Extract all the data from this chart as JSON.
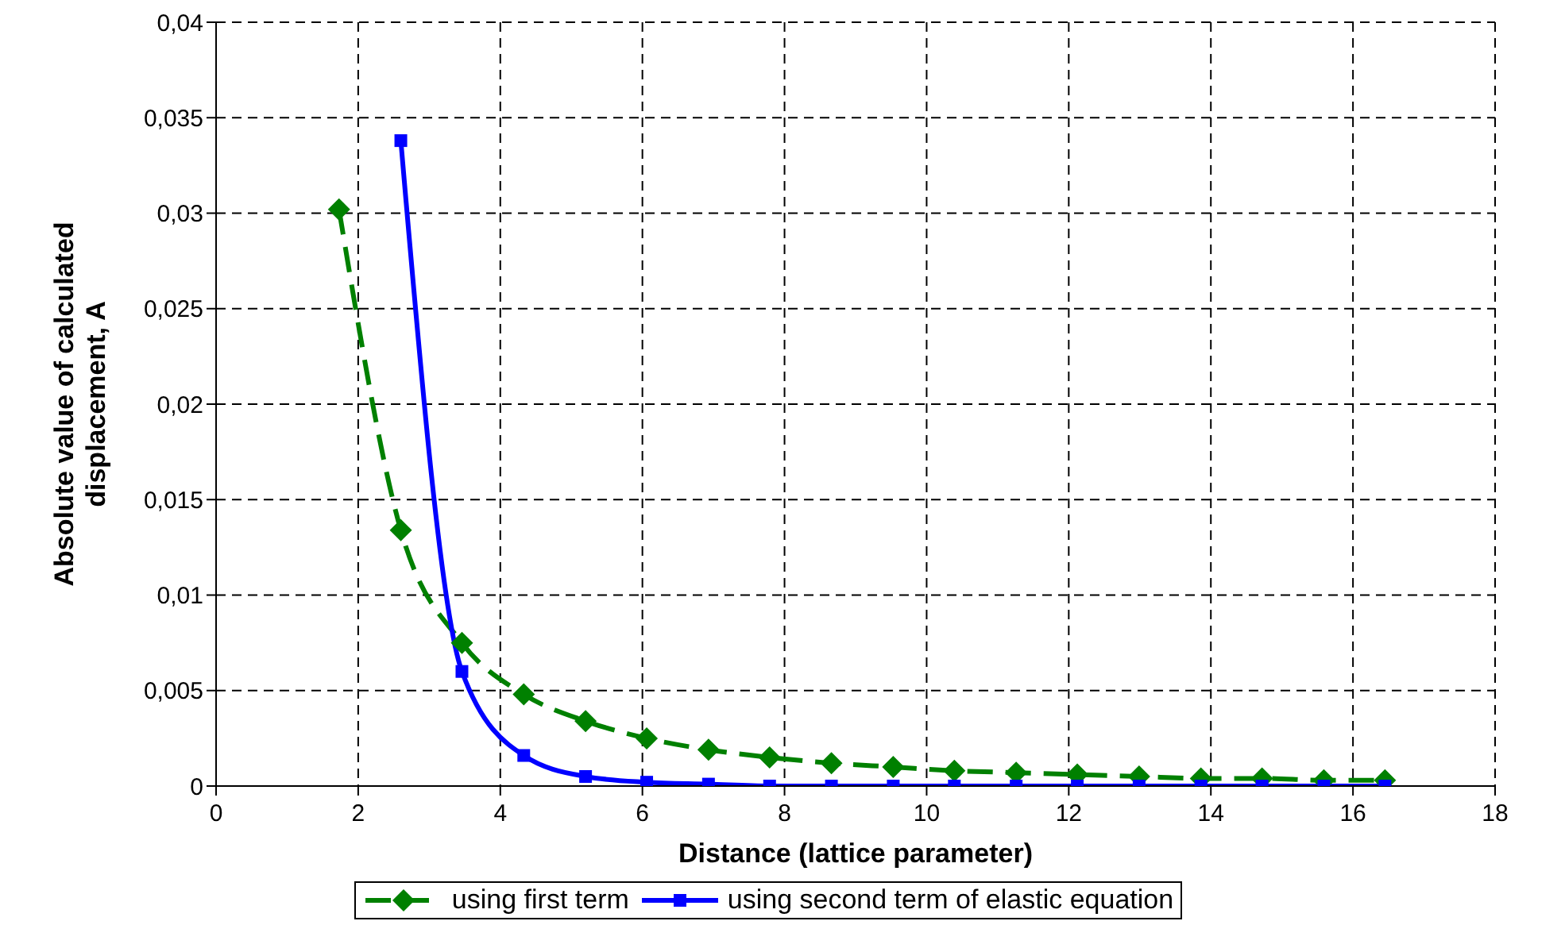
{
  "chart_data": {
    "type": "line",
    "xlabel": "Distance (lattice parameter)",
    "ylabel": "Absolute value of calculated displacement, A",
    "xlim": [
      0,
      18
    ],
    "xticks": [
      0,
      2,
      4,
      6,
      8,
      10,
      12,
      14,
      16,
      18
    ],
    "ylim": [
      0,
      0.04
    ],
    "yticks": [
      {
        "value": 0,
        "label": "0"
      },
      {
        "value": 0.005,
        "label": "0,005"
      },
      {
        "value": 0.01,
        "label": "0,01"
      },
      {
        "value": 0.015,
        "label": "0,015"
      },
      {
        "value": 0.02,
        "label": "0,02"
      },
      {
        "value": 0.025,
        "label": "0,025"
      },
      {
        "value": 0.03,
        "label": "0,03"
      },
      {
        "value": 0.035,
        "label": "0,035"
      },
      {
        "value": 0.04,
        "label": "0,04"
      }
    ],
    "grid": true,
    "legend": "bottom",
    "series": [
      {
        "name": "using first term",
        "color": "#008000",
        "marker": "diamond",
        "line_style": "dashed",
        "x": [
          1.73,
          2.6,
          3.46,
          4.33,
          5.2,
          6.06,
          6.93,
          7.79,
          8.66,
          9.53,
          10.39,
          11.26,
          12.12,
          12.99,
          13.86,
          14.72,
          15.59,
          16.45
        ],
        "values": [
          0.0302,
          0.0134,
          0.0075,
          0.0048,
          0.0034,
          0.0025,
          0.0019,
          0.0015,
          0.0012,
          0.001,
          0.0008,
          0.0007,
          0.0006,
          0.0005,
          0.0004,
          0.0004,
          0.0003,
          0.0003
        ]
      },
      {
        "name": "using second term of elastic equation",
        "color": "#0000ff",
        "marker": "square",
        "line_style": "solid",
        "x": [
          2.6,
          3.46,
          4.33,
          5.2,
          6.06,
          6.93,
          7.79,
          8.66,
          9.53,
          10.39,
          11.26,
          12.12,
          12.99,
          13.86,
          14.72,
          15.59,
          16.45
        ],
        "values": [
          0.0338,
          0.006,
          0.0016,
          0.0005,
          0.0002,
          0.0001,
          0,
          0,
          0,
          0,
          0,
          0,
          0,
          0,
          0,
          0,
          0
        ]
      }
    ]
  }
}
